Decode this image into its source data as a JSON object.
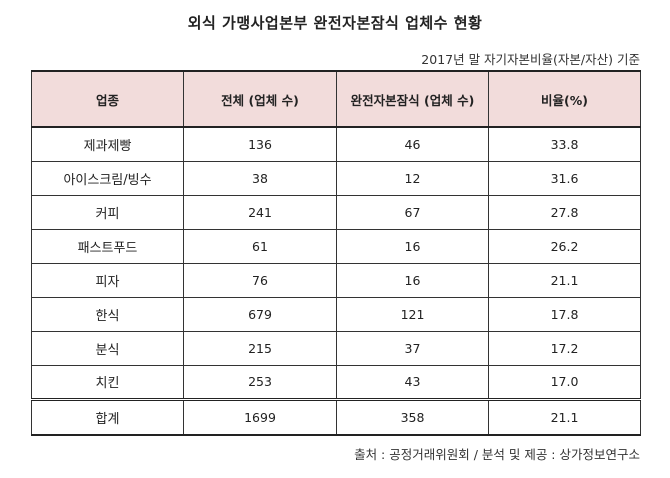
{
  "title": "외식 가맹사업본부 완전자본잠식 업체수 현황",
  "subtitle": "2017년 말 자기자본비율(자본/자산) 기준",
  "columns": [
    "업종",
    "전체 (업체 수)",
    "완전자본잠식 (업체 수)",
    "비율(%)"
  ],
  "rows": [
    {
      "category": "제과제빵",
      "total": "136",
      "impaired": "46",
      "ratio": "33.8"
    },
    {
      "category": "아이스크림/빙수",
      "total": "38",
      "impaired": "12",
      "ratio": "31.6"
    },
    {
      "category": "커피",
      "total": "241",
      "impaired": "67",
      "ratio": "27.8"
    },
    {
      "category": "패스트푸드",
      "total": "61",
      "impaired": "16",
      "ratio": "26.2"
    },
    {
      "category": "피자",
      "total": "76",
      "impaired": "16",
      "ratio": "21.1"
    },
    {
      "category": "한식",
      "total": "679",
      "impaired": "121",
      "ratio": "17.8"
    },
    {
      "category": "분식",
      "total": "215",
      "impaired": "37",
      "ratio": "17.2"
    },
    {
      "category": "치킨",
      "total": "253",
      "impaired": "43",
      "ratio": "17.0"
    }
  ],
  "totals": {
    "category": "합계",
    "total": "1699",
    "impaired": "358",
    "ratio": "21.1"
  },
  "source": "출처 : 공정거래위원회 / 분석 및 제공 : 상가정보연구소",
  "colors": {
    "header_background": "#f2dcdb",
    "border": "#333333"
  }
}
